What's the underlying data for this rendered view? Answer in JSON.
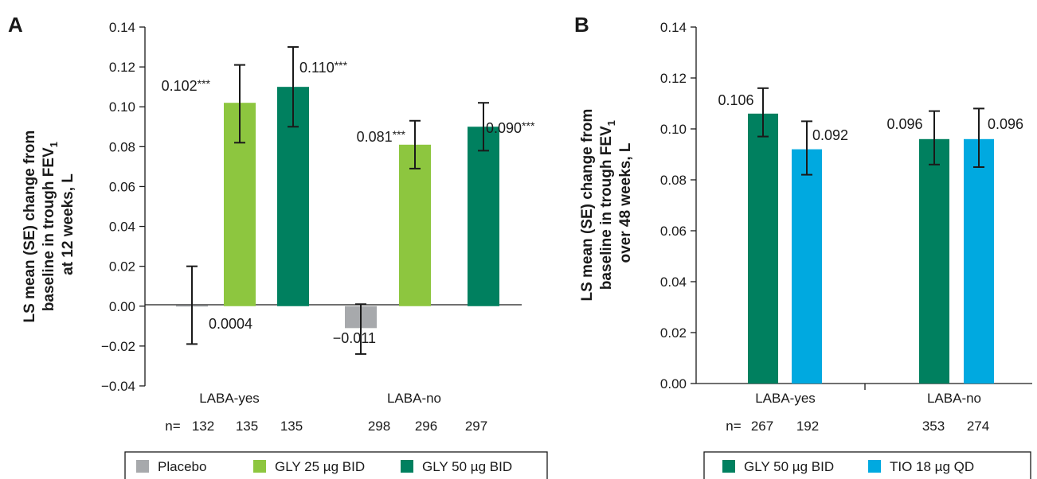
{
  "chart_data": [
    {
      "panel": "A",
      "type": "bar",
      "ylabel_lines": [
        "LS mean (SE) change from",
        "baseline in trough FEV",
        "at 12 weeks, L"
      ],
      "ylabel_subscript": "1",
      "ylim": [
        -0.04,
        0.14
      ],
      "yticks": [
        "0.14",
        "0.12",
        "0.10",
        "0.08",
        "0.06",
        "0.04",
        "0.02",
        "0.00",
        "−0.02",
        "−0.04"
      ],
      "ytick_values": [
        0.14,
        0.12,
        0.1,
        0.08,
        0.06,
        0.04,
        0.02,
        0.0,
        -0.02,
        -0.04
      ],
      "categories": [
        "LABA-yes",
        "LABA-no"
      ],
      "n_prefix": "n=",
      "n_values": [
        [
          "132",
          "135",
          "135"
        ],
        [
          "298",
          "296",
          "297"
        ]
      ],
      "series": [
        {
          "name": "Placebo",
          "color": "#a7a9ac",
          "values": [
            0.0004,
            -0.011
          ],
          "se_low": [
            -0.019,
            -0.024
          ],
          "se_high": [
            0.02,
            0.001
          ],
          "labels": [
            "0.0004",
            "−0.011"
          ],
          "stars": [
            "",
            ""
          ]
        },
        {
          "name": "GLY 25 µg BID",
          "color": "#8dc63f",
          "values": [
            0.102,
            0.081
          ],
          "se_low": [
            0.082,
            0.069
          ],
          "se_high": [
            0.121,
            0.093
          ],
          "labels": [
            "0.102",
            "0.081"
          ],
          "stars": [
            "***",
            "***"
          ]
        },
        {
          "name": "GLY 50 µg BID",
          "color": "#00805f",
          "values": [
            0.11,
            0.09
          ],
          "se_low": [
            0.09,
            0.078
          ],
          "se_high": [
            0.13,
            0.102
          ],
          "labels": [
            "0.110",
            "0.090"
          ],
          "stars": [
            "***",
            "***"
          ]
        }
      ],
      "legend_position": "bottom"
    },
    {
      "panel": "B",
      "type": "bar",
      "ylabel_lines": [
        "LS mean (SE) change from",
        "baseline in trough FEV",
        "over 48 weeks, L"
      ],
      "ylabel_subscript": "1",
      "ylim": [
        0.0,
        0.14
      ],
      "yticks": [
        "0.14",
        "0.12",
        "0.10",
        "0.08",
        "0.06",
        "0.04",
        "0.02",
        "0.00"
      ],
      "ytick_values": [
        0.14,
        0.12,
        0.1,
        0.08,
        0.06,
        0.04,
        0.02,
        0.0
      ],
      "categories": [
        "LABA-yes",
        "LABA-no"
      ],
      "n_prefix": "n=",
      "n_values": [
        [
          "267",
          "192"
        ],
        [
          "353",
          "274"
        ]
      ],
      "series": [
        {
          "name": "GLY 50 µg BID",
          "color": "#00805f",
          "values": [
            0.106,
            0.096
          ],
          "se_low": [
            0.097,
            0.086
          ],
          "se_high": [
            0.116,
            0.107
          ],
          "labels": [
            "0.106",
            "0.096"
          ],
          "stars": [
            "",
            ""
          ]
        },
        {
          "name": "TIO 18 µg QD",
          "color": "#00a9e0",
          "values": [
            0.092,
            0.096
          ],
          "se_low": [
            0.082,
            0.085
          ],
          "se_high": [
            0.103,
            0.108
          ],
          "labels": [
            "0.092",
            "0.096"
          ],
          "stars": [
            "",
            ""
          ]
        }
      ],
      "legend_position": "bottom"
    }
  ]
}
